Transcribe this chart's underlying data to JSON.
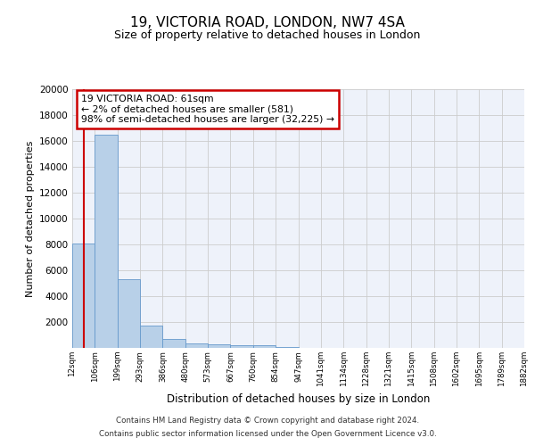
{
  "title": "19, VICTORIA ROAD, LONDON, NW7 4SA",
  "subtitle": "Size of property relative to detached houses in London",
  "xlabel": "Distribution of detached houses by size in London",
  "ylabel": "Number of detached properties",
  "bar_values": [
    8100,
    16500,
    5300,
    1750,
    700,
    350,
    280,
    200,
    200,
    80,
    30,
    10,
    5,
    3,
    2,
    1,
    1,
    0,
    0,
    0
  ],
  "bar_color": "#b8d0e8",
  "bar_edge_color": "#6699cc",
  "categories": [
    "12sqm",
    "106sqm",
    "199sqm",
    "293sqm",
    "386sqm",
    "480sqm",
    "573sqm",
    "667sqm",
    "760sqm",
    "854sqm",
    "947sqm",
    "1041sqm",
    "1134sqm",
    "1228sqm",
    "1321sqm",
    "1415sqm",
    "1508sqm",
    "1602sqm",
    "1695sqm",
    "1789sqm",
    "1882sqm"
  ],
  "ylim": [
    0,
    20000
  ],
  "yticks": [
    0,
    2000,
    4000,
    6000,
    8000,
    10000,
    12000,
    14000,
    16000,
    18000,
    20000
  ],
  "annotation_title": "19 VICTORIA ROAD: 61sqm",
  "annotation_line1": "← 2% of detached houses are smaller (581)",
  "annotation_line2": "98% of semi-detached houses are larger (32,225) →",
  "annotation_box_color": "#ffffff",
  "annotation_box_edge": "#cc0000",
  "vline_color": "#cc0000",
  "grid_color": "#cccccc",
  "background_color": "#eef2fa",
  "footer1": "Contains HM Land Registry data © Crown copyright and database right 2024.",
  "footer2": "Contains public sector information licensed under the Open Government Licence v3.0."
}
